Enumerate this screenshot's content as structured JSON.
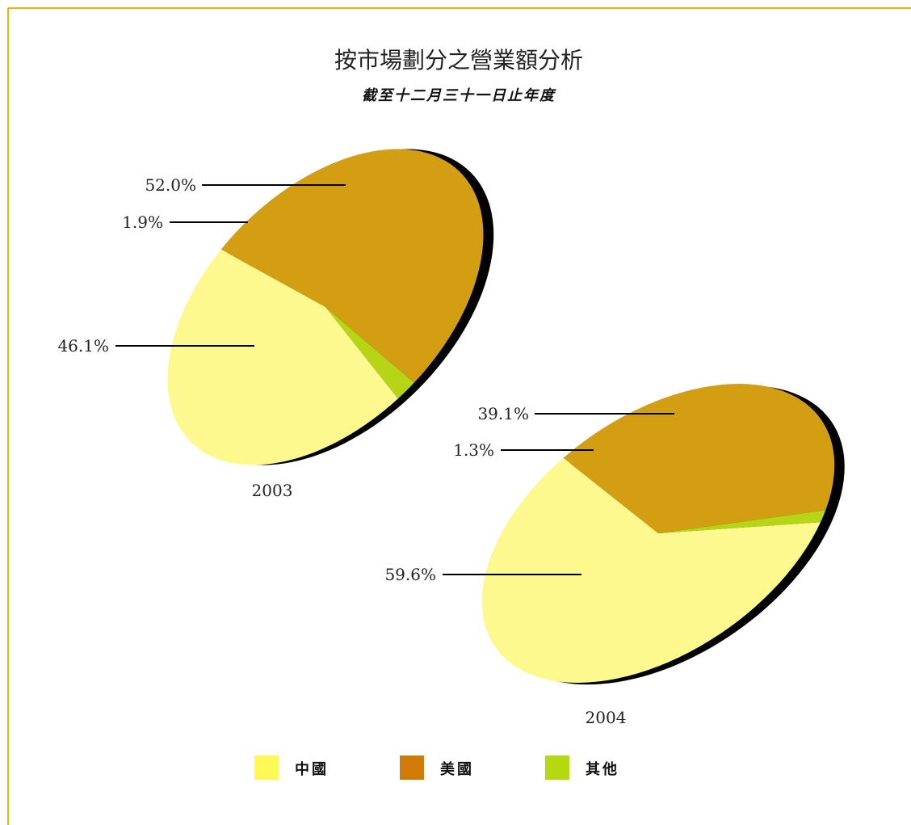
{
  "colors": {
    "frame": "#f0b400",
    "china": "#fdf98f",
    "usa": "#d39e12",
    "others": "#b6d516",
    "shadow": "#000000",
    "legend_china": "#fff955",
    "legend_usa": "#d17a07",
    "legend_others": "#b4d90f"
  },
  "chart_data": {
    "type": "pie",
    "title": "按市場劃分之營業額分析",
    "subtitle": "截至十二月三十一日止年度",
    "legend": [
      {
        "key": "china",
        "label": "中國"
      },
      {
        "key": "usa",
        "label": "美國"
      },
      {
        "key": "others",
        "label": "其他"
      }
    ],
    "pies": [
      {
        "name": "2003",
        "slices": [
          {
            "key": "usa",
            "value": 52.0,
            "label": "52.0%"
          },
          {
            "key": "others",
            "value": 1.9,
            "label": "1.9%"
          },
          {
            "key": "china",
            "value": 46.1,
            "label": "46.1%"
          }
        ]
      },
      {
        "name": "2004",
        "slices": [
          {
            "key": "usa",
            "value": 39.1,
            "label": "39.1%"
          },
          {
            "key": "others",
            "value": 1.3,
            "label": "1.3%"
          },
          {
            "key": "china",
            "value": 59.6,
            "label": "59.6%"
          }
        ]
      }
    ]
  }
}
